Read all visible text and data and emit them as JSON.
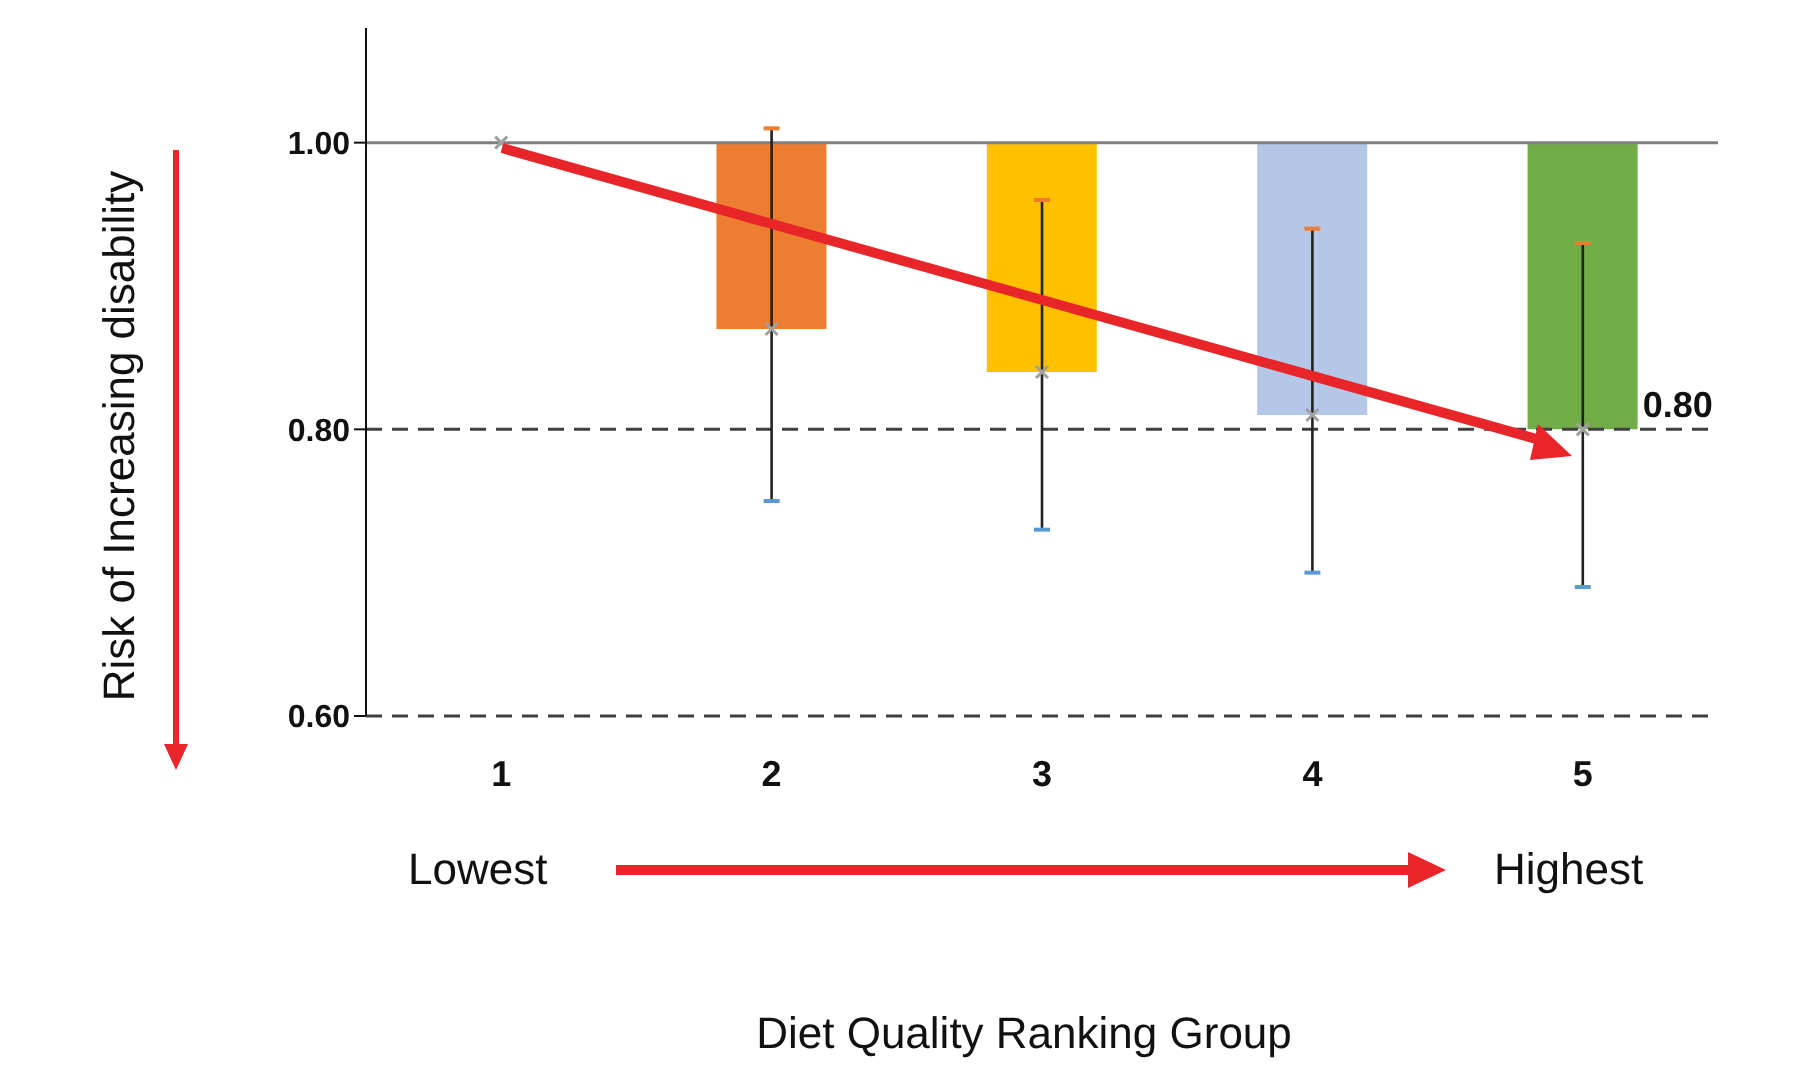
{
  "chart_data": {
    "type": "bar",
    "xlabel": "Diet Quality Ranking Group",
    "ylabel": "Risk of Increasing disability",
    "categories": [
      "1",
      "2",
      "3",
      "4",
      "5"
    ],
    "series": [
      {
        "base": [
          null,
          1.0,
          1.0,
          1.0,
          1.0
        ],
        "values": [
          null,
          -0.13,
          -0.16,
          -0.19,
          -0.2
        ],
        "colors": [
          null,
          "#ed7d31",
          "#ffc000",
          "#b4c7e7",
          "#70ad47"
        ]
      },
      {
        "type": "scatter",
        "x": [
          "1",
          "2",
          "3",
          "4",
          "5"
        ],
        "values": [
          1.0,
          0.87,
          0.84,
          0.81,
          0.8
        ],
        "color": "#a0a0a0",
        "marker": "cross",
        "errors": [
          null,
          [
            0.75,
            1.01
          ],
          [
            0.73,
            0.96
          ],
          [
            0.7,
            0.94
          ],
          [
            0.69,
            0.93
          ]
        ]
      }
    ],
    "ylim": [
      0.6,
      1.08
    ],
    "yticks": [
      {
        "value": 0.6,
        "label": "0.60"
      },
      {
        "value": 0.8,
        "label": "0.80"
      },
      {
        "value": 1.0,
        "label": "1.00"
      }
    ],
    "ref_lines": [
      {
        "axis": "y",
        "value": 1.0,
        "line_style": "solid",
        "color": "#7f7f7f"
      },
      {
        "axis": "y",
        "value": 0.8,
        "line_style": "dashed",
        "color": "#404040"
      },
      {
        "axis": "y",
        "value": 0.6,
        "line_style": "dashed",
        "color": "#404040"
      }
    ],
    "annotations": [
      {
        "text": "0.80",
        "x": "5",
        "y": 0.8
      },
      "Lowest",
      "Highest"
    ],
    "grid": false,
    "legend": false
  }
}
